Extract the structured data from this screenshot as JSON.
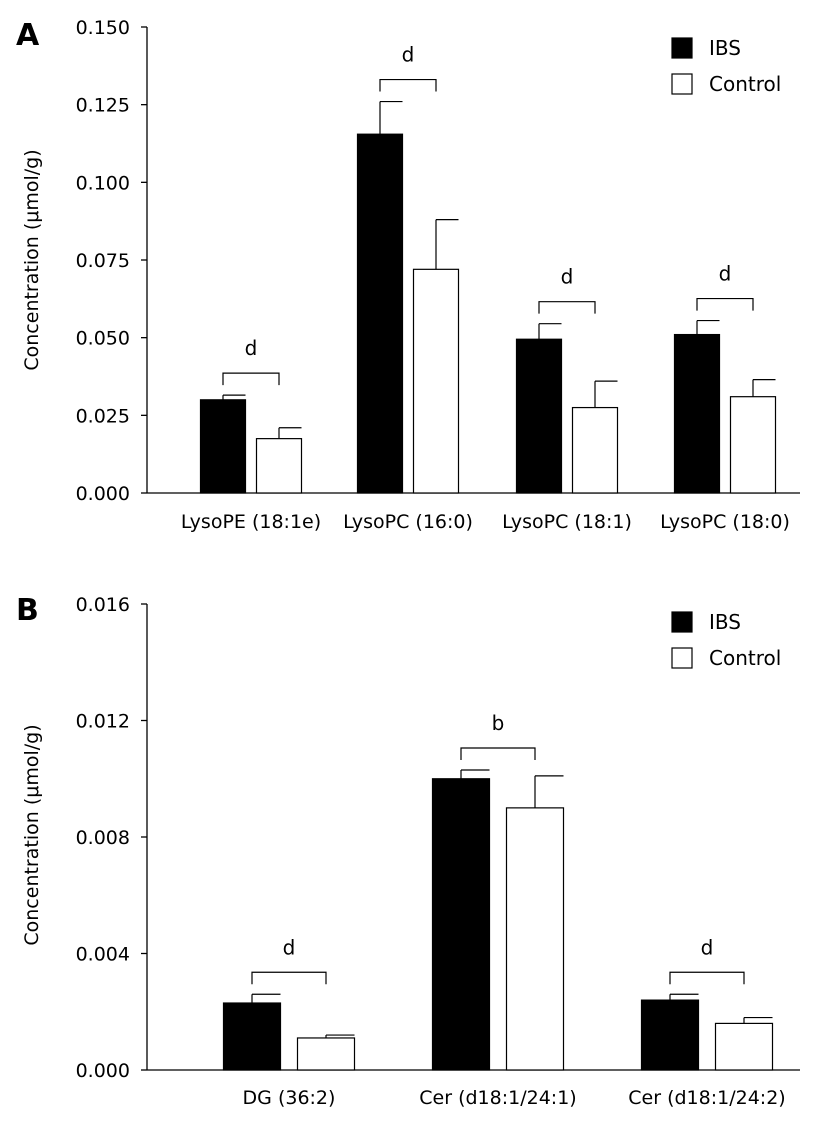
{
  "chart_data": [
    {
      "panel": "A",
      "type": "bar",
      "ylabel": "Concentration (μmol/g)",
      "ylim": [
        0,
        0.15
      ],
      "yticks": [
        "0.000",
        "0.025",
        "0.050",
        "0.075",
        "0.100",
        "0.125",
        "0.150"
      ],
      "categories": [
        "LysoPE (18:1e)",
        "LysoPC (16:0)",
        "LysoPC (18:1)",
        "LysoPC (18:0)"
      ],
      "series": [
        {
          "name": "IBS",
          "color": "#000000",
          "values": [
            0.03,
            0.1155,
            0.0495,
            0.051
          ],
          "errors": [
            0.0015,
            0.0105,
            0.005,
            0.0045
          ]
        },
        {
          "name": "Control",
          "color": "#ffffff",
          "values": [
            0.0175,
            0.072,
            0.0275,
            0.031
          ],
          "errors": [
            0.0035,
            0.016,
            0.0085,
            0.0055
          ]
        }
      ],
      "significance": [
        "d",
        "d",
        "d",
        "d"
      ],
      "legend_position": "top-right"
    },
    {
      "panel": "B",
      "type": "bar",
      "ylabel": "Concentration (μmol/g)",
      "ylim": [
        0,
        0.016
      ],
      "yticks": [
        "0.000",
        "0.004",
        "0.008",
        "0.012",
        "0.016"
      ],
      "categories": [
        "DG (36:2)",
        "Cer (d18:1/24:1)",
        "Cer (d18:1/24:2)"
      ],
      "series": [
        {
          "name": "IBS",
          "color": "#000000",
          "values": [
            0.0023,
            0.01,
            0.0024
          ],
          "errors": [
            0.0003,
            0.0003,
            0.0002
          ]
        },
        {
          "name": "Control",
          "color": "#ffffff",
          "values": [
            0.0011,
            0.009,
            0.0016
          ],
          "errors": [
            0.0001,
            0.0011,
            0.0002
          ]
        }
      ],
      "significance": [
        "d",
        "b",
        "d"
      ],
      "legend_position": "top-right"
    }
  ]
}
